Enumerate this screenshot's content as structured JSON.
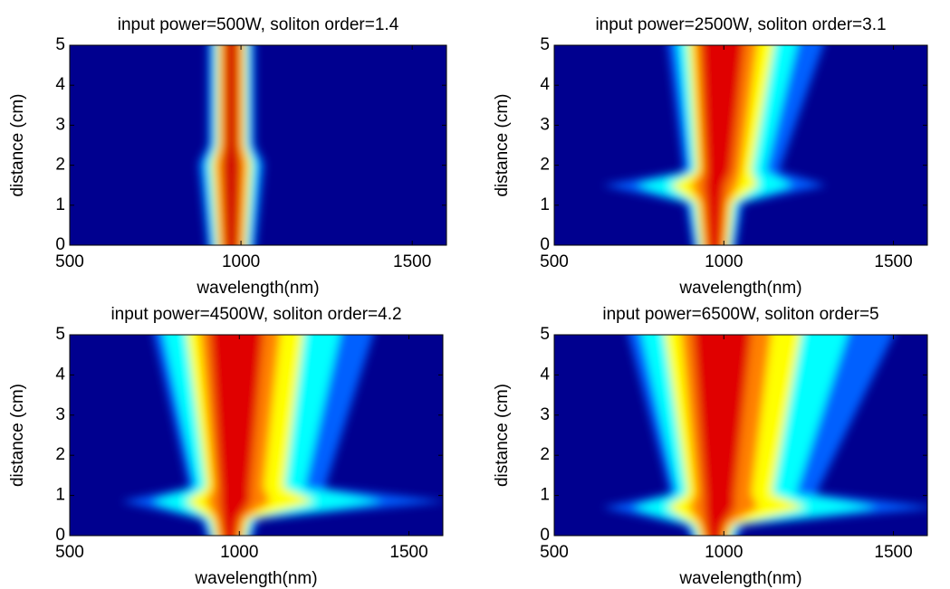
{
  "chart_data": [
    {
      "type": "heatmap",
      "title": "input power=500W, soliton order=1.4",
      "x_label": "wavelength(nm)",
      "y_label": "distance (cm)",
      "xlim": [
        500,
        1600
      ],
      "ylim": [
        0,
        5
      ],
      "xticks": [
        500,
        1000,
        1500
      ],
      "yticks": [
        0,
        1,
        2,
        3,
        4,
        5
      ]
    },
    {
      "type": "heatmap",
      "title": "input power=2500W, soliton order=3.1",
      "x_label": "wavelength(nm)",
      "y_label": "distance (cm)",
      "xlim": [
        500,
        1600
      ],
      "ylim": [
        0,
        5
      ],
      "xticks": [
        500,
        1000,
        1500
      ],
      "yticks": [
        0,
        1,
        2,
        3,
        4,
        5
      ]
    },
    {
      "type": "heatmap",
      "title": "input power=4500W, soliton order=4.2",
      "x_label": "wavelength(nm)",
      "y_label": "distance (cm)",
      "xlim": [
        500,
        1600
      ],
      "ylim": [
        0,
        5
      ],
      "xticks": [
        500,
        1000,
        1500
      ],
      "yticks": [
        0,
        1,
        2,
        3,
        4,
        5
      ]
    },
    {
      "type": "heatmap",
      "title": "input power=6500W, soliton order=5",
      "x_label": "wavelength(nm)",
      "y_label": "distance (cm)",
      "xlim": [
        500,
        1600
      ],
      "ylim": [
        0,
        5
      ],
      "xticks": [
        500,
        1000,
        1500
      ],
      "yticks": [
        0,
        1,
        2,
        3,
        4,
        5
      ]
    }
  ]
}
